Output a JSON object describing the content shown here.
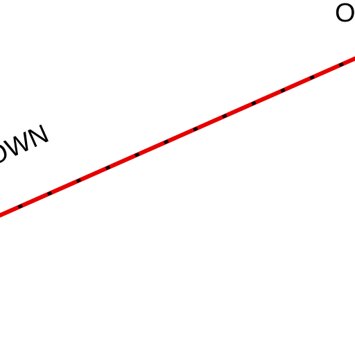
{
  "map": {
    "background_color": "#ffffff",
    "labels": {
      "left": "OWN",
      "top_right": "O"
    },
    "route": {
      "name": "",
      "casing_color": "#e60000",
      "dash_color": "#000000",
      "style": "dashed"
    }
  }
}
